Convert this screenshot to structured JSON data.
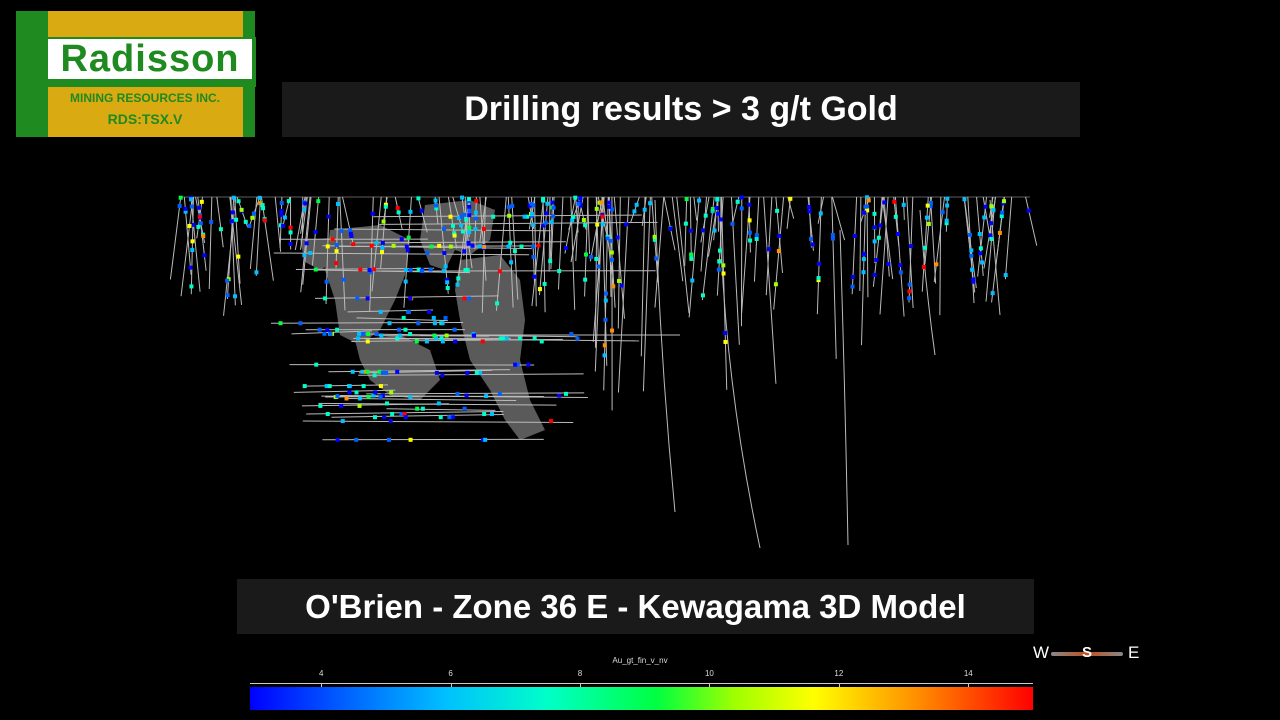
{
  "logo": {
    "name": "Radisson",
    "subtitle": "MINING RESOURCES INC.",
    "ticker": "RDS:TSX.V"
  },
  "title": "Drilling results > 3 g/t Gold",
  "subtitle": "O'Brien - Zone 36 E - Kewagama 3D Model",
  "compass": {
    "west": "W",
    "south": "S",
    "east": "E"
  },
  "legend": {
    "variable": "Au_gt_fin_v_nv",
    "ticks": [
      "4",
      "6",
      "8",
      "10",
      "12",
      "14"
    ],
    "tick_values": [
      4,
      6,
      8,
      10,
      12,
      14
    ],
    "range": [
      2.9,
      15.0
    ]
  },
  "colors": {
    "background": "#000000",
    "banner": "#1a1a1a",
    "logo_green": "#1f8a1f",
    "logo_gold": "#d9aa12",
    "stope_grey": "#5a5a5a",
    "drillhole": "#bbbbbb"
  }
}
